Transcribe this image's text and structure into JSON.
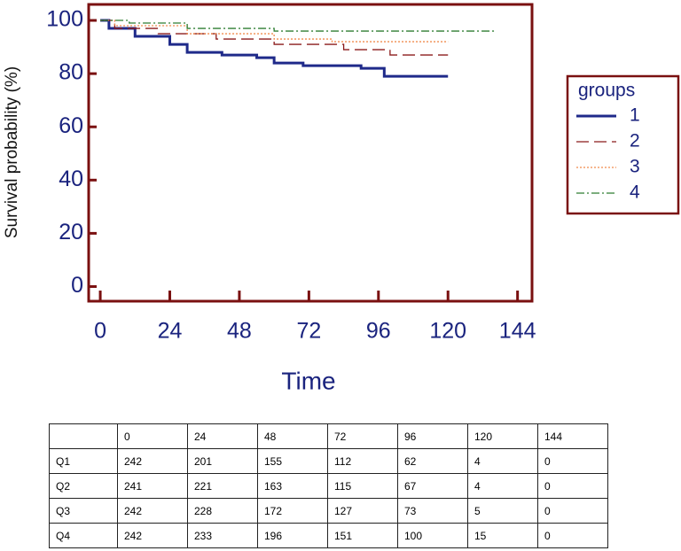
{
  "chart_data": {
    "type": "line",
    "y_label": "Survival probability (%)",
    "x_label": "Time",
    "xlim": [
      -4,
      149
    ],
    "ylim": [
      -5.5,
      106
    ],
    "xticks": [
      0,
      24,
      48,
      72,
      96,
      120,
      144
    ],
    "yticks": [
      0,
      20,
      40,
      60,
      80,
      100
    ],
    "legend_title": "groups",
    "legend": "right",
    "series": [
      {
        "name": "1",
        "color": "#1f2a8a",
        "style": "solid",
        "linewidth": 3,
        "x": [
          0,
          3,
          3,
          12,
          12,
          24,
          24,
          30,
          30,
          42,
          42,
          54,
          54,
          60,
          60,
          70,
          70,
          90,
          90,
          98,
          98,
          120
        ],
        "values": [
          100,
          100,
          97,
          97,
          94,
          94,
          91,
          91,
          88,
          88,
          87,
          87,
          86,
          86,
          84,
          84,
          83,
          83,
          82,
          82,
          79,
          79
        ]
      },
      {
        "name": "2",
        "color": "#8b1a1a",
        "style": "dashed",
        "linewidth": 1.3,
        "x": [
          0,
          5,
          5,
          20,
          20,
          40,
          40,
          60,
          60,
          84,
          84,
          100,
          100,
          120
        ],
        "values": [
          100,
          100,
          97,
          97,
          95,
          95,
          93,
          93,
          91,
          91,
          89,
          89,
          87,
          87
        ]
      },
      {
        "name": "3",
        "color": "#f08a4b",
        "style": "dotted",
        "linewidth": 1.3,
        "x": [
          0,
          5,
          5,
          30,
          30,
          60,
          60,
          80,
          80,
          120
        ],
        "values": [
          100,
          100,
          98,
          98,
          95,
          95,
          93,
          93,
          92,
          92
        ]
      },
      {
        "name": "4",
        "color": "#2e7d32",
        "style": "dashdot",
        "linewidth": 1.3,
        "x": [
          0,
          10,
          10,
          30,
          30,
          60,
          60,
          136
        ],
        "values": [
          100,
          100,
          99,
          99,
          97,
          97,
          96,
          96
        ]
      }
    ]
  },
  "table": {
    "header": [
      "0",
      "24",
      "48",
      "72",
      "96",
      "120",
      "144"
    ],
    "rows": [
      [
        "Q1",
        242,
        201,
        155,
        112,
        62,
        4,
        0
      ],
      [
        "Q2",
        241,
        221,
        163,
        115,
        67,
        4,
        0
      ],
      [
        "Q3",
        242,
        228,
        172,
        127,
        73,
        5,
        0
      ],
      [
        "Q4",
        242,
        233,
        196,
        151,
        100,
        15,
        0
      ]
    ]
  }
}
